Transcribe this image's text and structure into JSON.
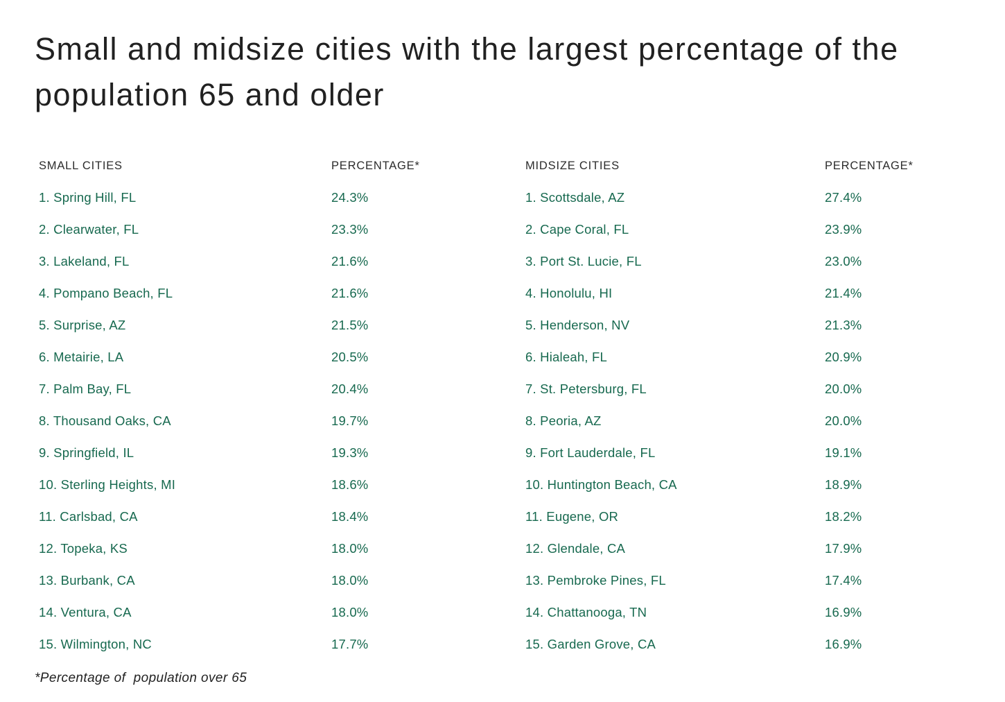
{
  "page": {
    "title": "Small and midsize cities with the largest percentage of the population 65 and older",
    "footnote": "*Percentage of  population over 65"
  },
  "colors": {
    "accent_green": "#17694F",
    "heading_dark": "#212121",
    "background": "#ffffff"
  },
  "chart_data": {
    "type": "table",
    "title": "Small and midsize cities with the largest percentage of the population 65 and older",
    "footnote": "*Percentage of population over 65",
    "value_unit": "percent of population over 65",
    "tables": [
      {
        "id": "small-cities",
        "headers": {
          "city": "SMALL CITIES",
          "pct": "PERCENTAGE*"
        },
        "rows": [
          {
            "label": "1. Spring Hill, FL",
            "pct": "24.3%",
            "value": 24.3
          },
          {
            "label": "2. Clearwater, FL",
            "pct": "23.3%",
            "value": 23.3
          },
          {
            "label": "3. Lakeland, FL",
            "pct": "21.6%",
            "value": 21.6
          },
          {
            "label": "4. Pompano Beach, FL",
            "pct": "21.6%",
            "value": 21.6
          },
          {
            "label": "5. Surprise, AZ",
            "pct": "21.5%",
            "value": 21.5
          },
          {
            "label": "6. Metairie, LA",
            "pct": "20.5%",
            "value": 20.5
          },
          {
            "label": "7. Palm Bay, FL",
            "pct": "20.4%",
            "value": 20.4
          },
          {
            "label": "8. Thousand Oaks, CA",
            "pct": "19.7%",
            "value": 19.7
          },
          {
            "label": "9. Springfield, IL",
            "pct": "19.3%",
            "value": 19.3
          },
          {
            "label": "10. Sterling Heights, MI",
            "pct": "18.6%",
            "value": 18.6
          },
          {
            "label": "11. Carlsbad, CA",
            "pct": "18.4%",
            "value": 18.4
          },
          {
            "label": "12. Topeka, KS",
            "pct": "18.0%",
            "value": 18.0
          },
          {
            "label": "13. Burbank, CA",
            "pct": "18.0%",
            "value": 18.0
          },
          {
            "label": "14. Ventura, CA",
            "pct": "18.0%",
            "value": 18.0
          },
          {
            "label": "15. Wilmington, NC",
            "pct": "17.7%",
            "value": 17.7
          }
        ]
      },
      {
        "id": "midsize-cities",
        "headers": {
          "city": "MIDSIZE CITIES",
          "pct": "PERCENTAGE*"
        },
        "rows": [
          {
            "label": "1. Scottsdale, AZ",
            "pct": "27.4%",
            "value": 27.4
          },
          {
            "label": "2. Cape Coral, FL",
            "pct": "23.9%",
            "value": 23.9
          },
          {
            "label": "3. Port St. Lucie, FL",
            "pct": "23.0%",
            "value": 23.0
          },
          {
            "label": "4. Honolulu, HI",
            "pct": "21.4%",
            "value": 21.4
          },
          {
            "label": "5. Henderson, NV",
            "pct": "21.3%",
            "value": 21.3
          },
          {
            "label": "6. Hialeah, FL",
            "pct": "20.9%",
            "value": 20.9
          },
          {
            "label": "7. St. Petersburg, FL",
            "pct": "20.0%",
            "value": 20.0
          },
          {
            "label": "8. Peoria, AZ",
            "pct": "20.0%",
            "value": 20.0
          },
          {
            "label": "9. Fort Lauderdale, FL",
            "pct": "19.1%",
            "value": 19.1
          },
          {
            "label": "10. Huntington Beach, CA",
            "pct": "18.9%",
            "value": 18.9
          },
          {
            "label": "11. Eugene, OR",
            "pct": "18.2%",
            "value": 18.2
          },
          {
            "label": "12. Glendale, CA",
            "pct": "17.9%",
            "value": 17.9
          },
          {
            "label": "13. Pembroke Pines, FL",
            "pct": "17.4%",
            "value": 17.4
          },
          {
            "label": "14. Chattanooga, TN",
            "pct": "16.9%",
            "value": 16.9
          },
          {
            "label": "15. Garden Grove, CA",
            "pct": "16.9%",
            "value": 16.9
          }
        ]
      }
    ]
  }
}
